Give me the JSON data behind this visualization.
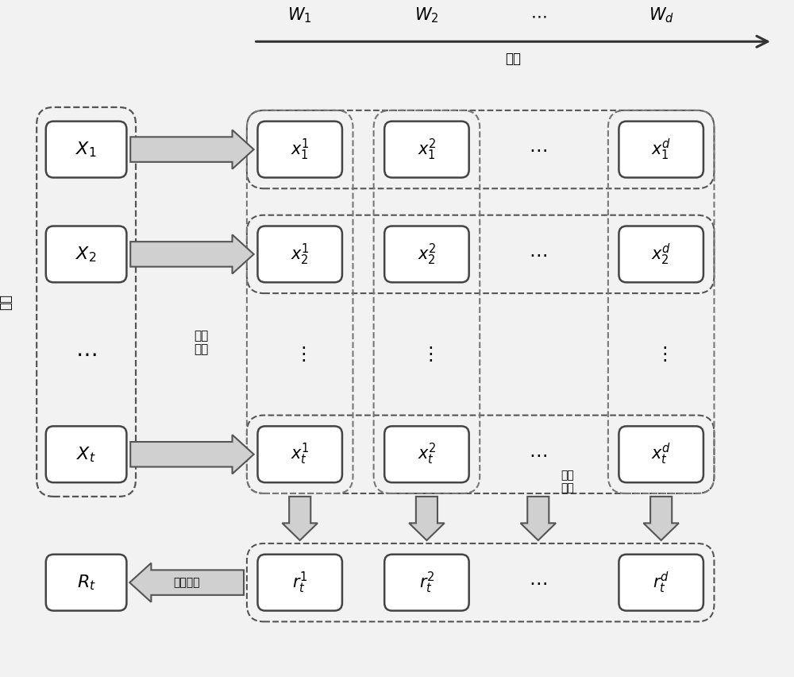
{
  "bg_color": "#f2f2f2",
  "fig_width": 10.0,
  "fig_height": 8.52,
  "dim_label": "维度",
  "time_label": "时间",
  "decomp_label": "多维\n分解",
  "privacy_label": "隐私\n计算",
  "linear_label": "线性组合"
}
